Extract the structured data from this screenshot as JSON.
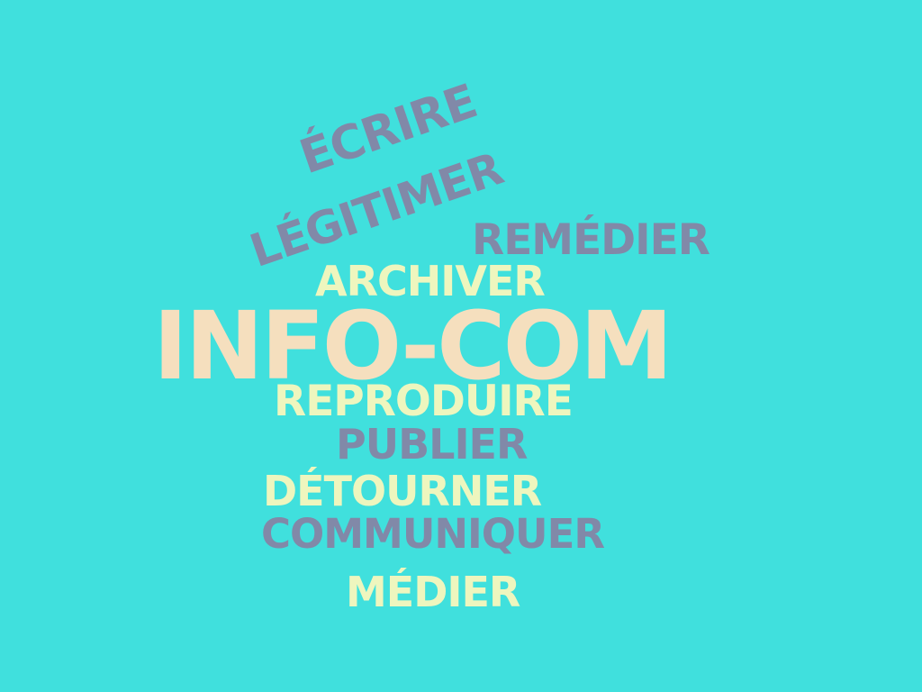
{
  "colors": {
    "background": "#40E0DD",
    "slate": "#8189A8",
    "cream": "#EEF6BE",
    "peach": "#F5DFBE"
  },
  "words": {
    "ecrire": "ÉCRIRE",
    "legitimer": "LÉGITIMER",
    "remedier": "REMÉDIER",
    "archiver": "ARCHIVER",
    "infocom": "INFO-COM",
    "reproduire": "REPRODUIRE",
    "publier": "PUBLIER",
    "detourner": "DÉTOURNER",
    "communiquer": "COMMUNIQUER",
    "medier": "MÉDIER"
  }
}
